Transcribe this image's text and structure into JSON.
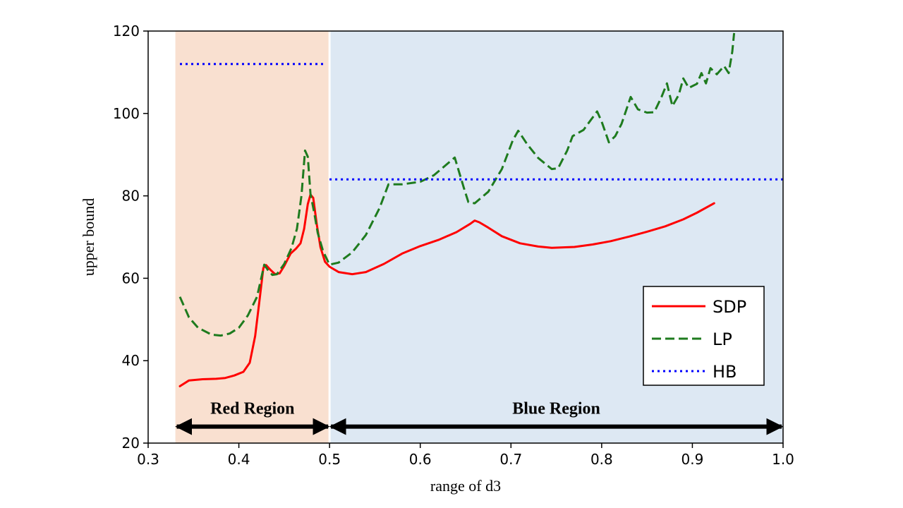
{
  "chart_data": {
    "type": "line",
    "title": "",
    "xlabel": "range of d3",
    "ylabel": "upper bound",
    "xlim": [
      0.3,
      1.0
    ],
    "ylim": [
      20,
      120
    ],
    "xticks": [
      0.3,
      0.4,
      0.5,
      0.6,
      0.7,
      0.8,
      0.9,
      1.0
    ],
    "xtick_labels": [
      "0.3",
      "0.4",
      "0.5",
      "0.6",
      "0.7",
      "0.8",
      "0.9",
      "1.0"
    ],
    "yticks": [
      20,
      40,
      60,
      80,
      100,
      120
    ],
    "ytick_labels": [
      "20",
      "40",
      "60",
      "80",
      "100",
      "120"
    ],
    "grid": false,
    "legend_position": "lower-right",
    "regions": [
      {
        "name": "Red Region",
        "x": [
          0.33,
          0.5
        ],
        "color": "#f9e0d0"
      },
      {
        "name": "Blue Region",
        "x": [
          0.5,
          1.0
        ],
        "color": "#dde8f3"
      }
    ],
    "series": [
      {
        "name": "SDP",
        "style": "solid",
        "color": "#ff0000",
        "points": [
          [
            0.335,
            33.8
          ],
          [
            0.345,
            35.2
          ],
          [
            0.36,
            35.5
          ],
          [
            0.375,
            35.6
          ],
          [
            0.385,
            35.8
          ],
          [
            0.395,
            36.4
          ],
          [
            0.405,
            37.3
          ],
          [
            0.412,
            39.5
          ],
          [
            0.418,
            46
          ],
          [
            0.423,
            55
          ],
          [
            0.427,
            62.5
          ],
          [
            0.43,
            63.2
          ],
          [
            0.435,
            62
          ],
          [
            0.44,
            61
          ],
          [
            0.445,
            61.2
          ],
          [
            0.45,
            63
          ],
          [
            0.457,
            66
          ],
          [
            0.463,
            67.2
          ],
          [
            0.468,
            68.5
          ],
          [
            0.472,
            72
          ],
          [
            0.476,
            78
          ],
          [
            0.479,
            80.3
          ],
          [
            0.482,
            79.5
          ],
          [
            0.486,
            73
          ],
          [
            0.49,
            67.5
          ],
          [
            0.495,
            64
          ],
          [
            0.5,
            62.8
          ],
          [
            0.51,
            61.5
          ],
          [
            0.525,
            61
          ],
          [
            0.54,
            61.5
          ],
          [
            0.56,
            63.5
          ],
          [
            0.58,
            66
          ],
          [
            0.6,
            67.8
          ],
          [
            0.62,
            69.3
          ],
          [
            0.64,
            71.2
          ],
          [
            0.655,
            73.2
          ],
          [
            0.66,
            74
          ],
          [
            0.665,
            73.6
          ],
          [
            0.675,
            72.3
          ],
          [
            0.69,
            70.2
          ],
          [
            0.71,
            68.5
          ],
          [
            0.73,
            67.7
          ],
          [
            0.745,
            67.4
          ],
          [
            0.77,
            67.6
          ],
          [
            0.79,
            68.2
          ],
          [
            0.81,
            69
          ],
          [
            0.83,
            70.1
          ],
          [
            0.85,
            71.3
          ],
          [
            0.87,
            72.6
          ],
          [
            0.89,
            74.3
          ],
          [
            0.905,
            75.9
          ],
          [
            0.924,
            78.2
          ]
        ]
      },
      {
        "name": "LP",
        "style": "dashed",
        "color": "#1e7b1e",
        "points": [
          [
            0.335,
            55.5
          ],
          [
            0.345,
            50.5
          ],
          [
            0.355,
            48
          ],
          [
            0.37,
            46.3
          ],
          [
            0.38,
            46.1
          ],
          [
            0.39,
            46.6
          ],
          [
            0.4,
            48
          ],
          [
            0.41,
            51
          ],
          [
            0.42,
            55.5
          ],
          [
            0.428,
            63.3
          ],
          [
            0.432,
            62
          ],
          [
            0.437,
            60.8
          ],
          [
            0.442,
            61
          ],
          [
            0.45,
            63.5
          ],
          [
            0.458,
            67.3
          ],
          [
            0.464,
            72
          ],
          [
            0.469,
            80
          ],
          [
            0.473,
            91
          ],
          [
            0.476,
            89.5
          ],
          [
            0.479,
            80.5
          ],
          [
            0.483,
            76
          ],
          [
            0.487,
            71
          ],
          [
            0.493,
            66.5
          ],
          [
            0.5,
            63.3
          ],
          [
            0.51,
            63.8
          ],
          [
            0.525,
            66.3
          ],
          [
            0.54,
            70.5
          ],
          [
            0.555,
            77
          ],
          [
            0.565,
            82.8
          ],
          [
            0.58,
            82.8
          ],
          [
            0.6,
            83.4
          ],
          [
            0.615,
            85
          ],
          [
            0.63,
            87.8
          ],
          [
            0.638,
            89.3
          ],
          [
            0.648,
            82
          ],
          [
            0.653,
            78.5
          ],
          [
            0.66,
            78.2
          ],
          [
            0.675,
            81
          ],
          [
            0.69,
            86.5
          ],
          [
            0.702,
            93.5
          ],
          [
            0.708,
            95.8
          ],
          [
            0.718,
            92.5
          ],
          [
            0.73,
            89.2
          ],
          [
            0.745,
            86.5
          ],
          [
            0.752,
            86.7
          ],
          [
            0.762,
            91
          ],
          [
            0.768,
            94.5
          ],
          [
            0.78,
            96
          ],
          [
            0.795,
            100.5
          ],
          [
            0.8,
            98
          ],
          [
            0.808,
            93
          ],
          [
            0.815,
            94.5
          ],
          [
            0.822,
            97.5
          ],
          [
            0.832,
            104
          ],
          [
            0.84,
            101
          ],
          [
            0.85,
            100.2
          ],
          [
            0.858,
            100.3
          ],
          [
            0.866,
            104
          ],
          [
            0.872,
            107.3
          ],
          [
            0.878,
            101.8
          ],
          [
            0.885,
            104.5
          ],
          [
            0.89,
            108.5
          ],
          [
            0.896,
            106.2
          ],
          [
            0.905,
            107.2
          ],
          [
            0.91,
            109.8
          ],
          [
            0.915,
            107.3
          ],
          [
            0.92,
            111
          ],
          [
            0.927,
            109.5
          ],
          [
            0.935,
            111.5
          ],
          [
            0.94,
            109.8
          ],
          [
            0.944,
            115
          ],
          [
            0.946,
            119.5
          ]
        ]
      },
      {
        "name": "HB",
        "style": "dotted",
        "color": "#0000ff",
        "segments": [
          [
            [
              0.335,
              112
            ],
            [
              0.495,
              112
            ]
          ],
          [
            [
              0.5,
              84
            ],
            [
              1.0,
              84
            ]
          ]
        ]
      }
    ],
    "annotations": [
      {
        "text": "Red Region",
        "arrow_x": [
          0.33,
          0.5
        ],
        "y": 24
      },
      {
        "text": "Blue Region",
        "arrow_x": [
          0.5,
          1.0
        ],
        "y": 24
      }
    ]
  }
}
